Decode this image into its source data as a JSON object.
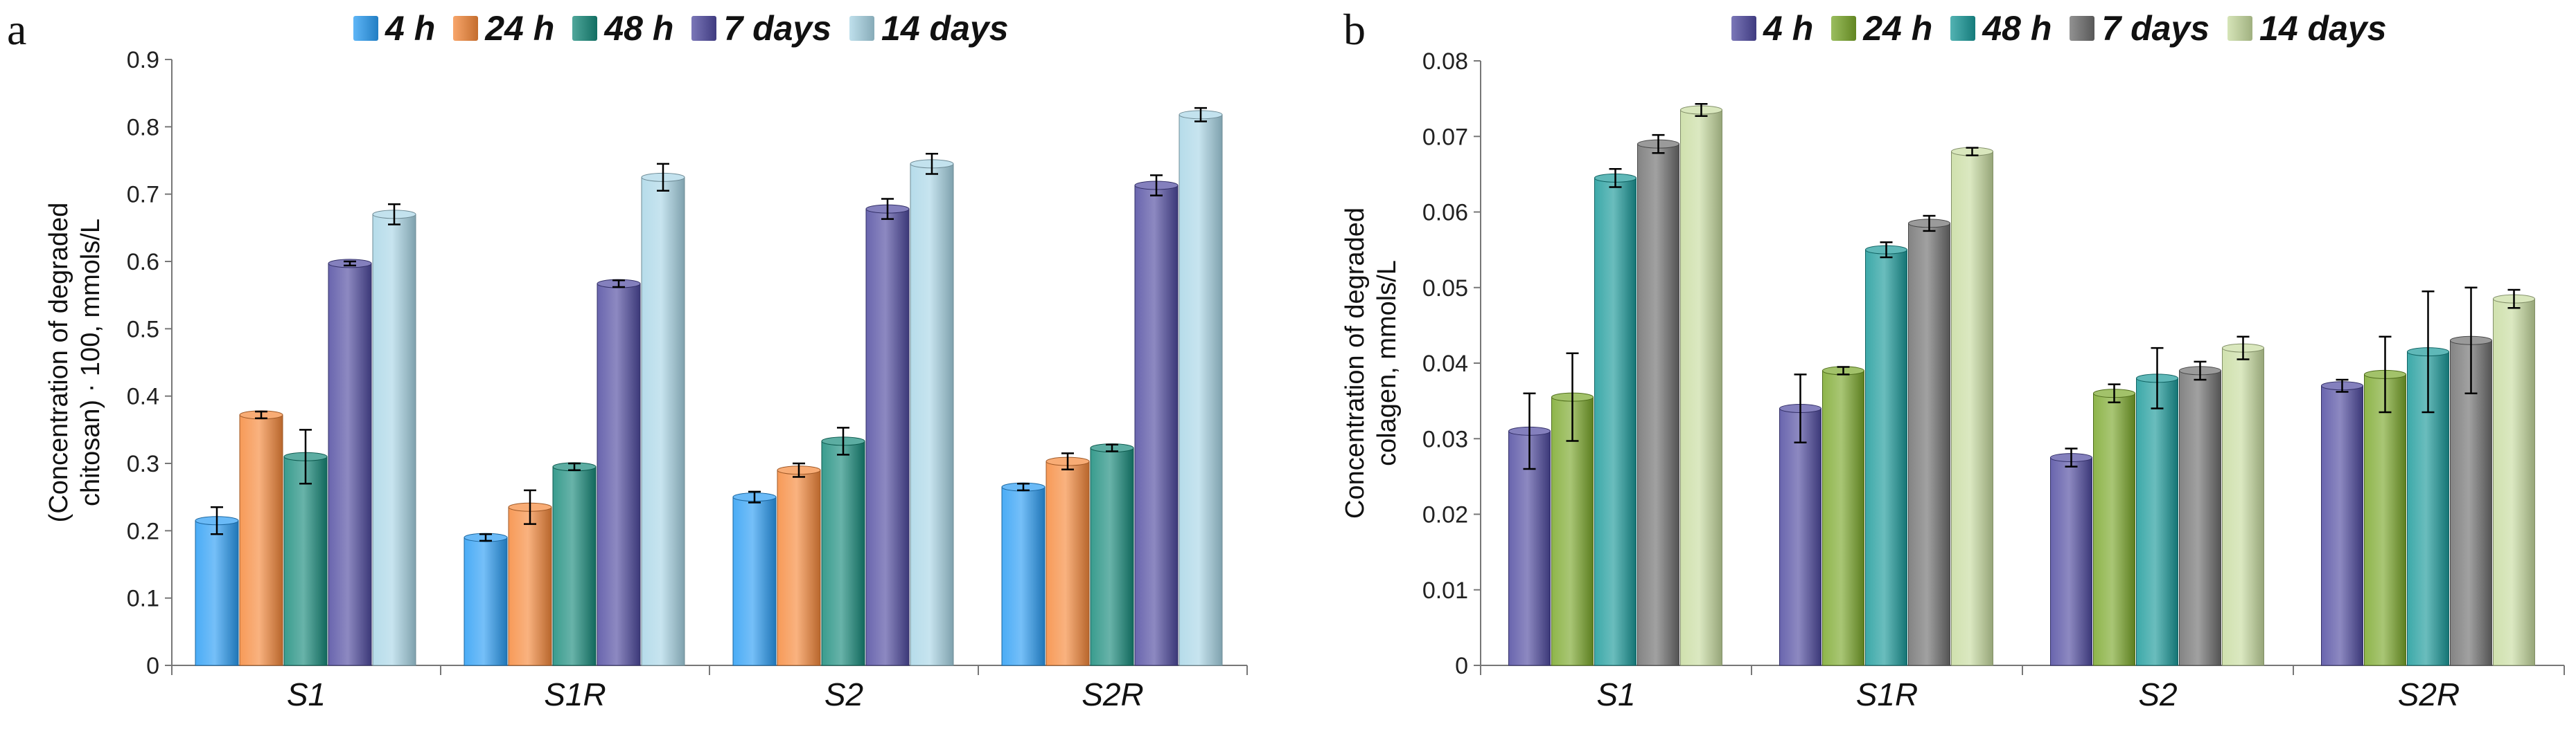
{
  "chart_data": [
    {
      "panel": "a",
      "type": "bar",
      "ylabel": "(Concentration of degraded chitosan) · 100, mmols/L",
      "ylabel_lines": [
        "(Concentration of degraded",
        "chitosan) · 100, mmols/L"
      ],
      "ylim": [
        0,
        0.9
      ],
      "yticks": [
        0,
        0.1,
        0.2,
        0.3,
        0.4,
        0.5,
        0.6,
        0.7,
        0.8,
        0.9
      ],
      "categories": [
        "S1",
        "S1R",
        "S2",
        "S2R"
      ],
      "legend_position": "top",
      "series": [
        {
          "name": "4 h",
          "color": "#2a9df4",
          "values": [
            0.215,
            0.19,
            0.25,
            0.265
          ],
          "errors": [
            0.02,
            0.005,
            0.008,
            0.005
          ]
        },
        {
          "name": "24 h",
          "color": "#f5883a",
          "values": [
            0.372,
            0.235,
            0.29,
            0.303
          ],
          "errors": [
            0.005,
            0.025,
            0.01,
            0.012
          ]
        },
        {
          "name": "48 h",
          "color": "#168a7a",
          "values": [
            0.31,
            0.295,
            0.333,
            0.323
          ],
          "errors": [
            0.04,
            0.005,
            0.02,
            0.005
          ]
        },
        {
          "name": "7 days",
          "color": "#4f4aa0",
          "values": [
            0.597,
            0.567,
            0.678,
            0.713
          ],
          "errors": [
            0.003,
            0.005,
            0.015,
            0.015
          ]
        },
        {
          "name": "14 days",
          "color": "#a9d6e6",
          "values": [
            0.67,
            0.725,
            0.745,
            0.818
          ],
          "errors": [
            0.015,
            0.02,
            0.015,
            0.01
          ]
        }
      ]
    },
    {
      "panel": "b",
      "type": "bar",
      "ylabel": "Concentration of degraded colagen, mmols/L",
      "ylabel_lines": [
        "Concentration of degraded",
        "colagen,  mmols/L"
      ],
      "ylim": [
        0,
        0.08
      ],
      "yticks": [
        0,
        0.01,
        0.02,
        0.03,
        0.04,
        0.05,
        0.06,
        0.07,
        0.08
      ],
      "categories": [
        "S1",
        "S1R",
        "S2",
        "S2R"
      ],
      "legend_position": "top",
      "series": [
        {
          "name": "4 h",
          "color": "#4f4aa0",
          "values": [
            0.031,
            0.034,
            0.0275,
            0.037
          ],
          "errors": [
            0.005,
            0.0045,
            0.0012,
            0.0008
          ]
        },
        {
          "name": "24 h",
          "color": "#7aa82a",
          "values": [
            0.0355,
            0.039,
            0.036,
            0.0385
          ],
          "errors": [
            0.0058,
            0.0005,
            0.0012,
            0.005
          ]
        },
        {
          "name": "48 h",
          "color": "#1a9a9a",
          "values": [
            0.0645,
            0.055,
            0.038,
            0.0415
          ],
          "errors": [
            0.0012,
            0.001,
            0.004,
            0.008
          ]
        },
        {
          "name": "7 days",
          "color": "#6e6e6e",
          "values": [
            0.069,
            0.0585,
            0.039,
            0.043
          ],
          "errors": [
            0.0012,
            0.001,
            0.0012,
            0.007
          ]
        },
        {
          "name": "14 days",
          "color": "#c8dca0",
          "values": [
            0.0735,
            0.068,
            0.042,
            0.0485
          ],
          "errors": [
            0.0008,
            0.0005,
            0.0015,
            0.0012
          ]
        }
      ]
    }
  ],
  "panels": {
    "a": {
      "letter": "a"
    },
    "b": {
      "letter": "b"
    }
  }
}
